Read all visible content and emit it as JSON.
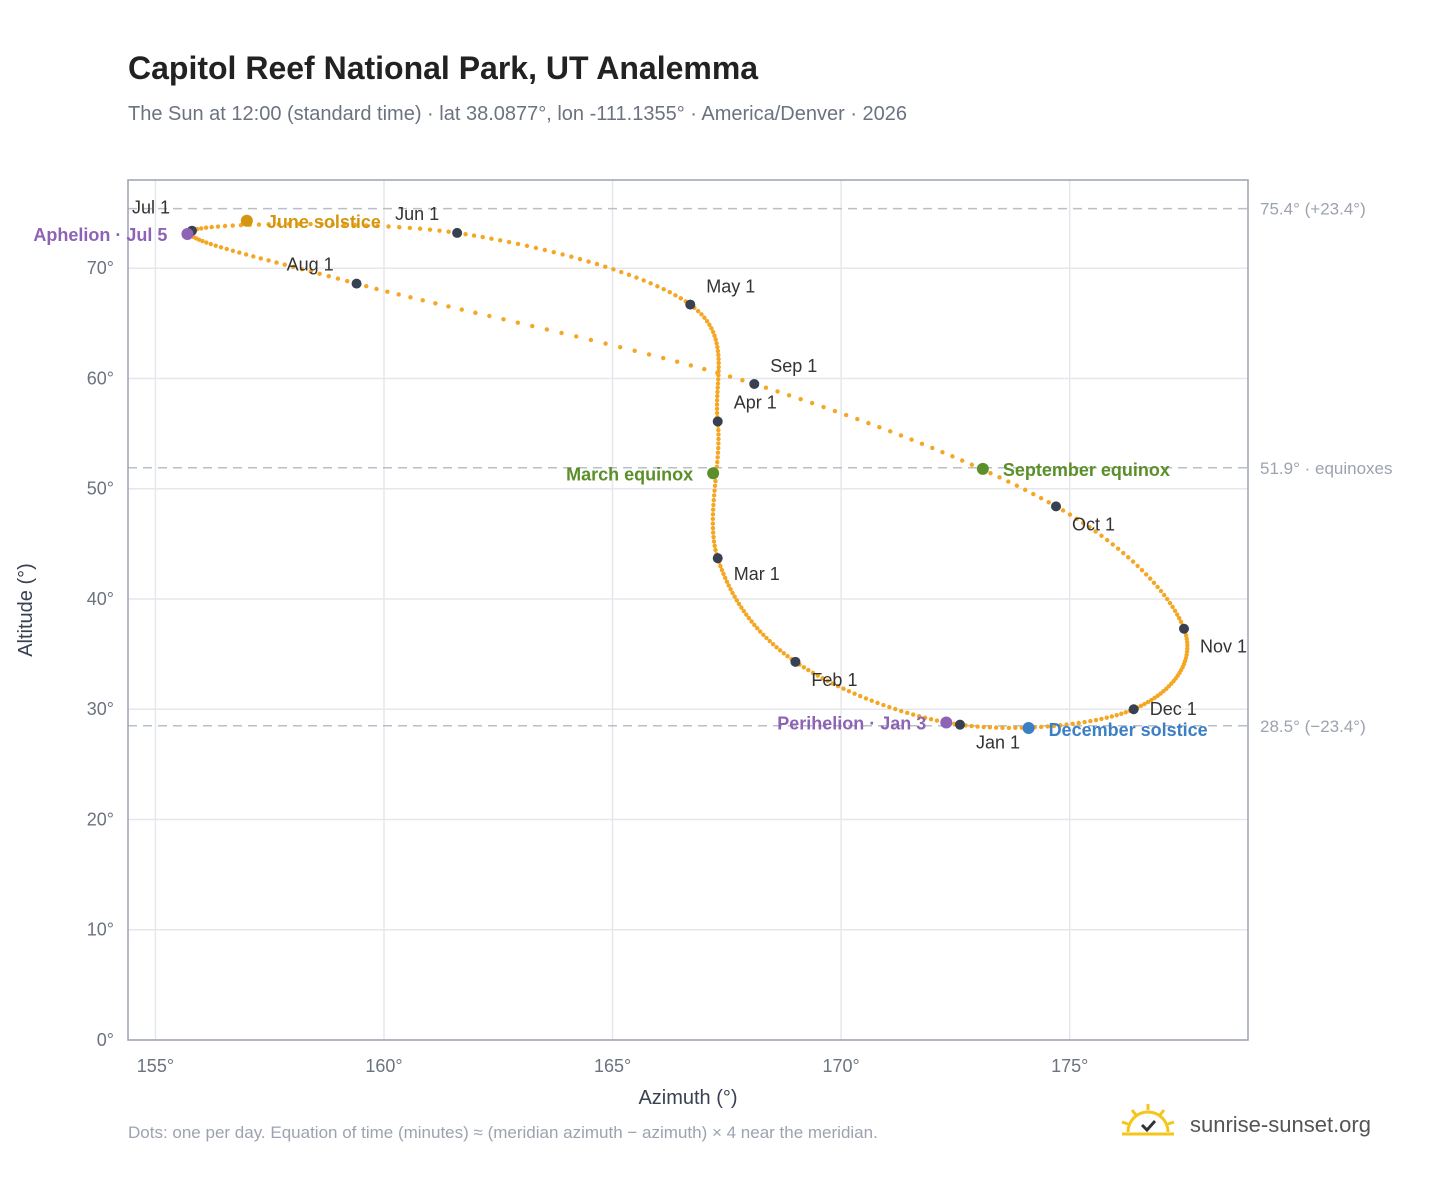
{
  "title": "Capitol Reef National Park, UT Analemma",
  "subtitle": "The Sun at 12:00 (standard time) · lat 38.0877°, lon -111.1355° · America/Denver · 2026",
  "footnote": "Dots: one per day. Equation of time (minutes) ≈ (meridian azimuth − azimuth) × 4 near the meridian.",
  "brand": "sunrise-sunset.org",
  "colors": {
    "analemma": "#f5a623",
    "month_marker": "#374151",
    "solstice_june": "#d4960f",
    "solstice_december": "#3b7fc4",
    "equinox": "#5a8f29",
    "aphelion_perihelion": "#8e63b5",
    "reference_line": "#b8bfc8",
    "grid": "#e5e7eb"
  },
  "chart_data": {
    "type": "scatter",
    "xlabel": "Azimuth (°)",
    "ylabel": "Altitude (°)",
    "xlim": [
      154.4,
      178.9
    ],
    "ylim": [
      0,
      78
    ],
    "x_ticks": [
      {
        "value": 155,
        "label": "155°"
      },
      {
        "value": 160,
        "label": "160°"
      },
      {
        "value": 165,
        "label": "165°"
      },
      {
        "value": 170,
        "label": "170°"
      },
      {
        "value": 175,
        "label": "175°"
      }
    ],
    "y_ticks": [
      {
        "value": 0,
        "label": "0°"
      },
      {
        "value": 10,
        "label": "10°"
      },
      {
        "value": 20,
        "label": "20°"
      },
      {
        "value": 30,
        "label": "30°"
      },
      {
        "value": 40,
        "label": "40°"
      },
      {
        "value": 50,
        "label": "50°"
      },
      {
        "value": 60,
        "label": "60°"
      },
      {
        "value": 70,
        "label": "70°"
      }
    ],
    "grid": true,
    "reference_lines": [
      {
        "value": 75.4,
        "label": "75.4° (+23.4°)"
      },
      {
        "value": 51.9,
        "label": "51.9° · equinoxes"
      },
      {
        "value": 28.5,
        "label": "28.5° (−23.4°)"
      }
    ],
    "months": [
      {
        "label": "Jan 1",
        "az": 172.6,
        "alt": 28.6
      },
      {
        "label": "Feb 1",
        "az": 169.0,
        "alt": 34.3
      },
      {
        "label": "Mar 1",
        "az": 167.3,
        "alt": 43.7
      },
      {
        "label": "Apr 1",
        "az": 167.3,
        "alt": 56.1
      },
      {
        "label": "May 1",
        "az": 166.7,
        "alt": 66.7
      },
      {
        "label": "Jun 1",
        "az": 161.6,
        "alt": 73.2
      },
      {
        "label": "Jul 1",
        "az": 155.8,
        "alt": 73.4
      },
      {
        "label": "Aug 1",
        "az": 159.4,
        "alt": 68.6
      },
      {
        "label": "Sep 1",
        "az": 168.1,
        "alt": 59.5
      },
      {
        "label": "Oct 1",
        "az": 174.7,
        "alt": 48.4
      },
      {
        "label": "Nov 1",
        "az": 177.5,
        "alt": 37.3
      },
      {
        "label": "Dec 1",
        "az": 176.4,
        "alt": 30.0
      }
    ],
    "events": [
      {
        "label": "June solstice",
        "az": 157.0,
        "alt": 74.3,
        "kind": "solstice_june"
      },
      {
        "label": "December solstice",
        "az": 174.1,
        "alt": 28.3,
        "kind": "solstice_december"
      },
      {
        "label": "March equinox",
        "az": 167.2,
        "alt": 51.4,
        "kind": "equinox"
      },
      {
        "label": "September equinox",
        "az": 173.1,
        "alt": 51.8,
        "kind": "equinox"
      },
      {
        "label": "Aphelion · Jul 5",
        "az": 155.7,
        "alt": 73.1,
        "kind": "aphelion_perihelion"
      },
      {
        "label": "Perihelion · Jan 3",
        "az": 172.3,
        "alt": 28.8,
        "kind": "aphelion_perihelion"
      }
    ]
  }
}
